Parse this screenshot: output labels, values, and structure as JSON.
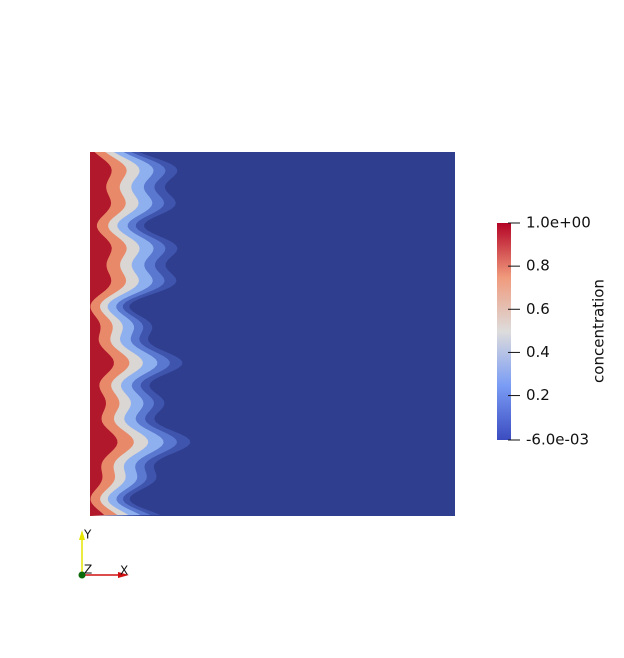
{
  "colorbar": {
    "title": "concentration",
    "range": [
      -0.006,
      1.0
    ],
    "ticks": [
      {
        "value": 1.0,
        "label": "1.0e+00"
      },
      0.8,
      0.6,
      0.4,
      0.2,
      {
        "value": -0.006,
        "label": "-6.0e-03"
      }
    ]
  },
  "axes_triad": {
    "y_label": "Y",
    "z_label": "Z",
    "x_label": "X"
  }
}
